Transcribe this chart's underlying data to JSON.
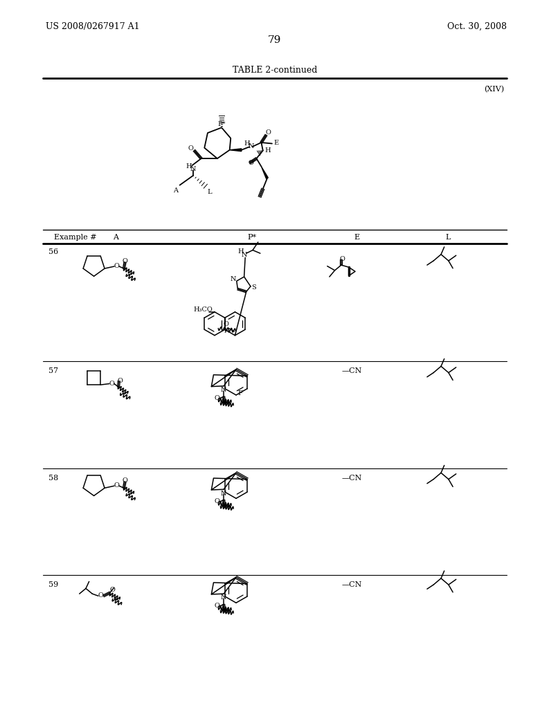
{
  "title_left": "US 2008/0267917 A1",
  "title_right": "Oct. 30, 2008",
  "page_number": "79",
  "table_title": "TABLE 2-continued",
  "formula_label": "(XIV)",
  "background": "#ffffff"
}
